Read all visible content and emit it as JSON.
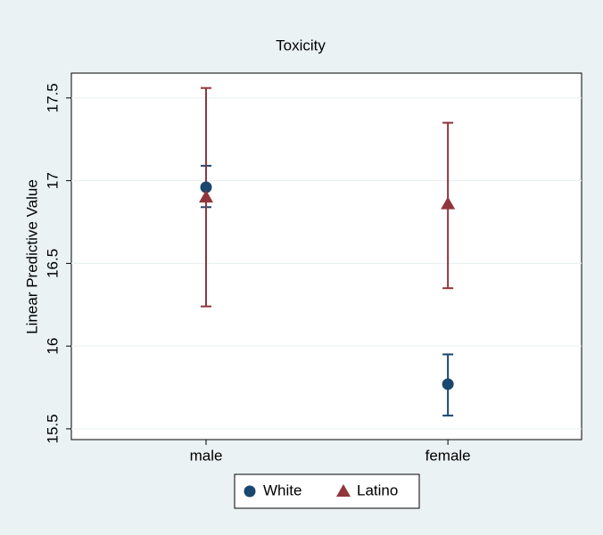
{
  "chart_data": {
    "type": "errorbar",
    "title": "Toxicity",
    "y_label": "Linear Predictive Value",
    "categories": [
      "male",
      "female"
    ],
    "series": [
      {
        "name": "White",
        "color": "#1a476f",
        "marker": "circle",
        "values": [
          16.96,
          15.77
        ],
        "lower": [
          16.84,
          15.58
        ],
        "upper": [
          17.09,
          15.95
        ]
      },
      {
        "name": "Latino",
        "color": "#90353b",
        "marker": "triangle",
        "values": [
          16.9,
          16.86
        ],
        "lower": [
          16.24,
          16.35
        ],
        "upper": [
          17.56,
          17.35
        ]
      }
    ],
    "ylim": [
      15.435,
      17.65
    ],
    "yticks": [
      15.5,
      16,
      16.5,
      17,
      17.5
    ],
    "grid": true
  }
}
